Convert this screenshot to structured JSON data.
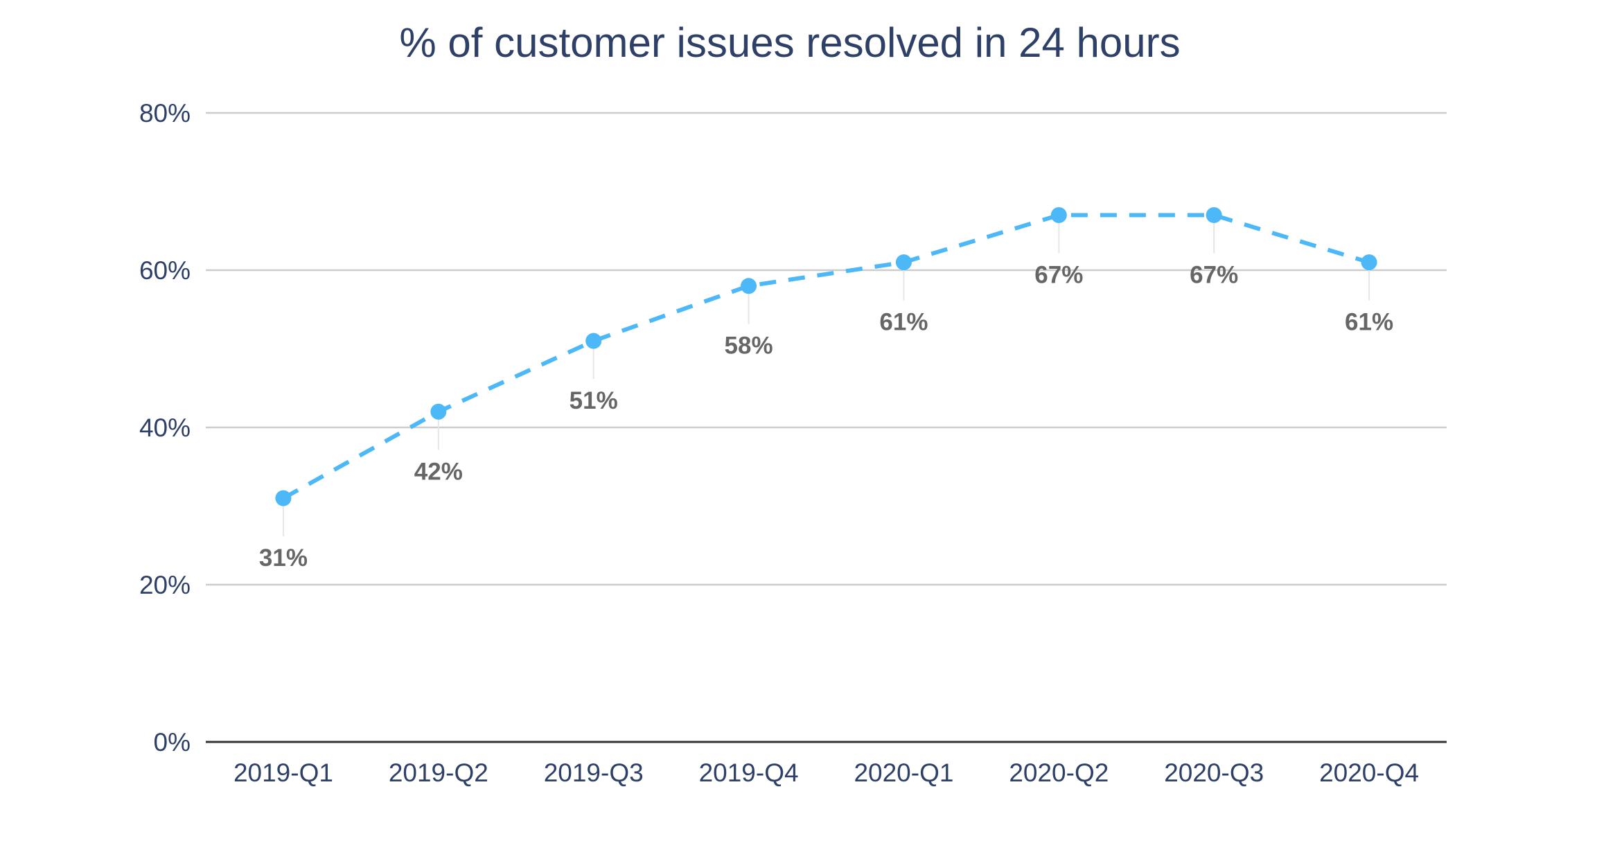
{
  "chart_data": {
    "type": "line",
    "title": "% of customer issues resolved in 24 hours",
    "xlabel": "",
    "ylabel": "",
    "categories": [
      "2019-Q1",
      "2019-Q2",
      "2019-Q3",
      "2019-Q4",
      "2020-Q1",
      "2020-Q2",
      "2020-Q3",
      "2020-Q4"
    ],
    "values": [
      31,
      42,
      51,
      58,
      61,
      67,
      67,
      61
    ],
    "data_labels": [
      "31%",
      "42%",
      "51%",
      "58%",
      "61%",
      "67%",
      "67%",
      "61%"
    ],
    "ylim": [
      0,
      80
    ],
    "yticks": [
      0,
      20,
      40,
      60,
      80
    ],
    "ytick_labels": [
      "0%",
      "20%",
      "40%",
      "60%",
      "80%"
    ],
    "grid": true,
    "line_style": "dashed",
    "colors": {
      "series": "#4db8f8",
      "title": "#2e4068",
      "label": "#666666",
      "grid": "#cccccc",
      "axis": "#333333"
    }
  }
}
